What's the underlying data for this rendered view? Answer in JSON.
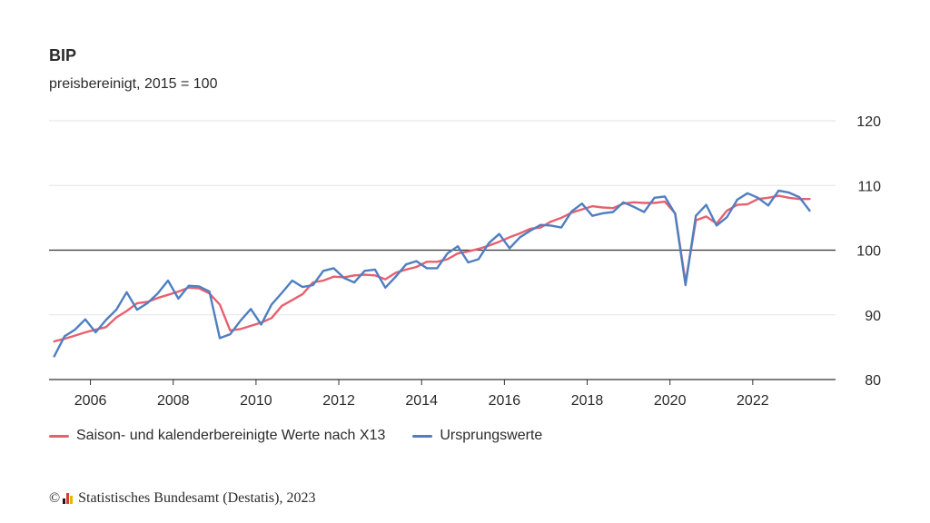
{
  "chart_data": {
    "type": "line",
    "title": "BIP",
    "subtitle": "preisbereinigt, 2015 = 100",
    "xlabel": "",
    "ylabel": "",
    "x_ticks": [
      "2006",
      "2008",
      "2010",
      "2012",
      "2014",
      "2016",
      "2018",
      "2020",
      "2022"
    ],
    "y_ticks": [
      "80",
      "90",
      "100",
      "110",
      "120"
    ],
    "ylim": [
      80,
      120
    ],
    "xlim": [
      2005.0,
      2024.0
    ],
    "reference_line": 100,
    "grid": "horizontal",
    "y_axis_position": "right",
    "legend_position": "bottom-left",
    "x_quarters": [
      "2005-Q1",
      "2005-Q2",
      "2005-Q3",
      "2005-Q4",
      "2006-Q1",
      "2006-Q2",
      "2006-Q3",
      "2006-Q4",
      "2007-Q1",
      "2007-Q2",
      "2007-Q3",
      "2007-Q4",
      "2008-Q1",
      "2008-Q2",
      "2008-Q3",
      "2008-Q4",
      "2009-Q1",
      "2009-Q2",
      "2009-Q3",
      "2009-Q4",
      "2010-Q1",
      "2010-Q2",
      "2010-Q3",
      "2010-Q4",
      "2011-Q1",
      "2011-Q2",
      "2011-Q3",
      "2011-Q4",
      "2012-Q1",
      "2012-Q2",
      "2012-Q3",
      "2012-Q4",
      "2013-Q1",
      "2013-Q2",
      "2013-Q3",
      "2013-Q4",
      "2014-Q1",
      "2014-Q2",
      "2014-Q3",
      "2014-Q4",
      "2015-Q1",
      "2015-Q2",
      "2015-Q3",
      "2015-Q4",
      "2016-Q1",
      "2016-Q2",
      "2016-Q3",
      "2016-Q4",
      "2017-Q1",
      "2017-Q2",
      "2017-Q3",
      "2017-Q4",
      "2018-Q1",
      "2018-Q2",
      "2018-Q3",
      "2018-Q4",
      "2019-Q1",
      "2019-Q2",
      "2019-Q3",
      "2019-Q4",
      "2020-Q1",
      "2020-Q2",
      "2020-Q3",
      "2020-Q4",
      "2021-Q1",
      "2021-Q2",
      "2021-Q3",
      "2021-Q4",
      "2022-Q1",
      "2022-Q2",
      "2022-Q3",
      "2022-Q4",
      "2023-Q1",
      "2023-Q2"
    ],
    "x_start_year": 2005.125,
    "x_step_years": 0.25,
    "series": [
      {
        "name": "Saison- und kalenderbereinigte Werte nach X13",
        "color": "#e8606f",
        "values": [
          85.9,
          86.3,
          86.8,
          87.3,
          87.7,
          88.1,
          89.6,
          90.6,
          91.8,
          92.0,
          92.6,
          93.1,
          93.6,
          94.2,
          94.1,
          93.3,
          91.6,
          87.6,
          87.8,
          88.3,
          88.8,
          89.5,
          91.4,
          92.3,
          93.2,
          95.0,
          95.3,
          95.9,
          95.8,
          96.1,
          96.2,
          96.1,
          95.5,
          96.5,
          97.0,
          97.4,
          98.2,
          98.2,
          98.6,
          99.5,
          99.8,
          100.2,
          100.7,
          101.3,
          102.0,
          102.6,
          103.3,
          103.5,
          104.4,
          105.0,
          105.8,
          106.3,
          106.8,
          106.6,
          106.5,
          107.2,
          107.4,
          107.3,
          107.3,
          107.5,
          105.7,
          95.0,
          104.6,
          105.2,
          104.1,
          106.1,
          107.0,
          107.1,
          107.9,
          108.1,
          108.4,
          108.1,
          107.9,
          107.9
        ]
      },
      {
        "name": "Ursprungswerte",
        "color": "#4f7fc0",
        "values": [
          83.6,
          86.7,
          87.7,
          89.3,
          87.3,
          89.2,
          90.8,
          93.5,
          90.8,
          91.8,
          93.3,
          95.3,
          92.5,
          94.5,
          94.4,
          93.6,
          86.4,
          87.0,
          89.1,
          90.9,
          88.5,
          91.6,
          93.4,
          95.3,
          94.3,
          94.6,
          96.8,
          97.2,
          95.7,
          95.0,
          96.8,
          97.0,
          94.2,
          95.9,
          97.8,
          98.3,
          97.2,
          97.2,
          99.5,
          100.6,
          98.1,
          98.6,
          101.1,
          102.5,
          100.3,
          102.0,
          103.0,
          103.9,
          103.8,
          103.5,
          106.0,
          107.2,
          105.3,
          105.7,
          105.9,
          107.4,
          106.7,
          105.9,
          108.1,
          108.3,
          105.6,
          94.6,
          105.3,
          107.0,
          103.8,
          105.1,
          107.8,
          108.8,
          108.1,
          106.9,
          109.2,
          108.9,
          108.2,
          106.1
        ]
      }
    ]
  },
  "legend": {
    "items": [
      {
        "label": "Saison- und kalenderbereinigte Werte nach X13",
        "color": "#e8606f"
      },
      {
        "label": "Ursprungswerte",
        "color": "#4f7fc0"
      }
    ]
  },
  "source": {
    "copyright": "©",
    "text": "Statistisches Bundesamt (Destatis), 2023",
    "logo_colors": [
      "#1a1a1a",
      "#d93a3a",
      "#e6b800"
    ]
  }
}
